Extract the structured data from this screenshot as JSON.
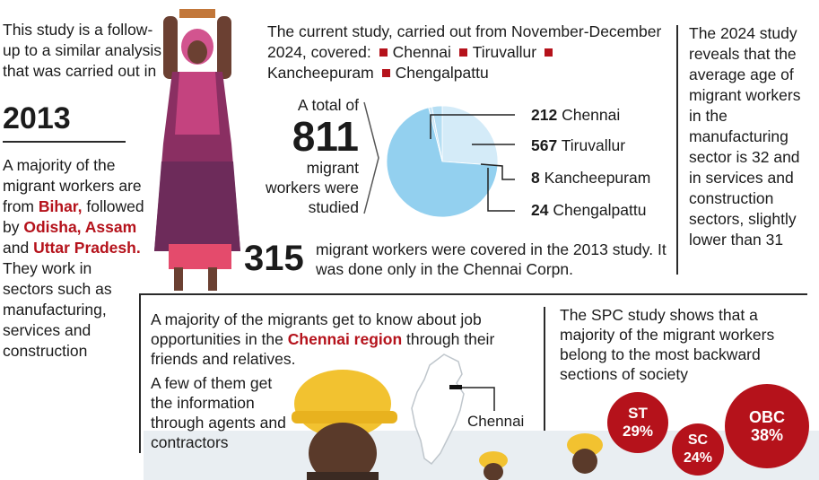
{
  "left": {
    "intro": "This study is a follow-up to a similar analysis that was carried out in",
    "year": "2013",
    "majority_prefix": "A majority of the migrant workers are from",
    "states": [
      "Bihar,",
      "Odisha, Assam",
      "Uttar Pradesh."
    ],
    "followed_by": "followed by",
    "and_word": "and",
    "sectors": "They work in sectors such as manufacturing, services and construction"
  },
  "top": {
    "study_text": "The current study, carried out from November-December 2024, covered:",
    "districts": [
      "Chennai",
      "Tiruvallur",
      "Kancheepuram",
      "Chengalpattu"
    ],
    "total_prefix": "A total of",
    "total": "811",
    "total_suffix": "migrant workers were studied"
  },
  "chart_data": {
    "type": "pie",
    "total": 811,
    "slices": [
      {
        "label": "Chennai",
        "value": 212
      },
      {
        "label": "Tiruvallur",
        "value": 567
      },
      {
        "label": "Kancheepuram",
        "value": 8
      },
      {
        "label": "Chengalpattu",
        "value": 24
      }
    ],
    "colors": [
      "#d4ebf8",
      "#93d0ef",
      "#c9e6f6",
      "#b5def3"
    ]
  },
  "study2013": {
    "number": "315",
    "text": "migrant workers were covered in the 2013 study. It was done only in the Chennai Corpn."
  },
  "right": {
    "text": "The 2024 study reveals that the average age of migrant workers in the manufacturing sector is 32 and in services and construction sectors, slightly lower than 31"
  },
  "bottom_mid": {
    "text_a": "A majority of the migrants get to know about job opportunities in the",
    "highlight": "Chennai region",
    "text_b": "through their friends and relatives.",
    "text_c": "A few of them get the information through agents and contractors",
    "map_label": "Chennai"
  },
  "bottom_right": {
    "text": "The SPC study shows that a majority of the migrant workers belong to the most backward sections of society",
    "groups": [
      {
        "label": "ST",
        "pct": "29%"
      },
      {
        "label": "SC",
        "pct": "24%"
      },
      {
        "label": "OBC",
        "pct": "38%"
      }
    ]
  },
  "colors": {
    "accent_red": "#b5121b",
    "pie_blue": "#93d0ef",
    "hat_yellow": "#f2c230"
  }
}
